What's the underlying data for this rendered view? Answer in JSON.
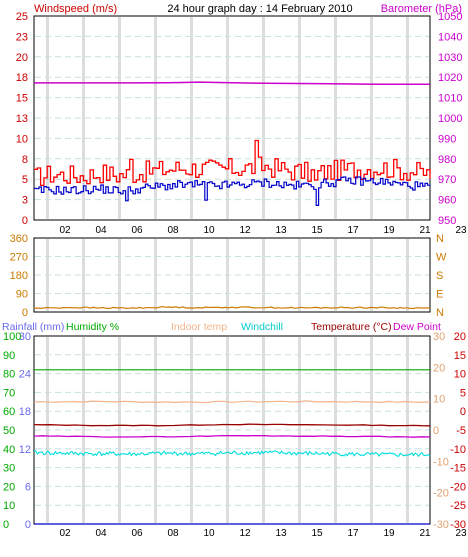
{
  "header": {
    "left_title": "Windspeed (m/s)",
    "center_title": "24 hour graph day : 14 February 2010",
    "right_title": "Barometer (hPa)"
  },
  "colors": {
    "wind_gust": "#ff0000",
    "wind_avg": "#0000cc",
    "barometer": "#cc00cc",
    "direction": "#cc7a00",
    "rainfall_axis": "#6a6aee",
    "humidity": "#00aa00",
    "indoor_temp": "#f2b48a",
    "windchill": "#00dddd",
    "temperature": "#990000",
    "dew_point": "#cc00cc",
    "grid_vertical": "#dddddd",
    "grid_dashed": "#c8dfdf"
  },
  "x_ticks": [
    "02",
    "04",
    "06",
    "08",
    "10",
    "12",
    "13",
    "15",
    "17",
    "19",
    "21",
    "23"
  ],
  "chart_data": [
    {
      "type": "line",
      "name": "wind-barometer",
      "y_left_ticks": [
        "0",
        "3",
        "5",
        "8",
        "10",
        "13",
        "15",
        "18",
        "20",
        "23",
        "25"
      ],
      "y_left_range": [
        0,
        25
      ],
      "y_right_ticks": [
        "950",
        "960",
        "970",
        "980",
        "990",
        "1000",
        "1010",
        "1020",
        "1030",
        "1040",
        "1050"
      ],
      "y_right_range": [
        950,
        1050
      ],
      "series": [
        {
          "name": "Barometer",
          "axis": "right",
          "x": [
            0,
            6,
            8,
            9,
            10,
            12,
            14,
            16,
            18,
            20,
            22,
            24
          ],
          "values": [
            1017.2,
            1017.2,
            1017.3,
            1017.4,
            1017.6,
            1017.3,
            1017.0,
            1016.9,
            1016.8,
            1016.6,
            1016.5,
            1016.5
          ]
        },
        {
          "name": "Wind gust",
          "axis": "left",
          "x": [
            0,
            1,
            2,
            3,
            4,
            5,
            6,
            7,
            8,
            9,
            10,
            11,
            12,
            13,
            14,
            15,
            16,
            17,
            18,
            19,
            20,
            21,
            22,
            23,
            24
          ],
          "values": [
            5.2,
            5.6,
            5.5,
            5.4,
            5.8,
            5.5,
            5.7,
            6.0,
            6.2,
            6.4,
            6.3,
            6.2,
            6.3,
            6.4,
            6.6,
            6.2,
            5.9,
            5.7,
            6.0,
            6.2,
            6.3,
            6.4,
            6.2,
            5.9,
            5.6
          ]
        },
        {
          "name": "Wind average",
          "axis": "left",
          "x": [
            0,
            1,
            2,
            3,
            4,
            5,
            6,
            7,
            8,
            9,
            10,
            11,
            12,
            13,
            14,
            15,
            16,
            17,
            18,
            19,
            20,
            21,
            22,
            23,
            24
          ],
          "values": [
            3.5,
            3.7,
            3.6,
            3.7,
            3.8,
            3.6,
            3.7,
            4.0,
            4.2,
            4.3,
            4.3,
            4.2,
            4.3,
            4.4,
            4.6,
            4.3,
            4.2,
            4.3,
            4.6,
            4.8,
            4.8,
            4.7,
            4.4,
            4.2,
            4.0
          ]
        }
      ]
    },
    {
      "type": "line",
      "name": "wind-direction",
      "y_left_ticks": [
        "0",
        "90",
        "180",
        "270",
        "360"
      ],
      "y_left_range": [
        0,
        360
      ],
      "y_right_ticks": [
        "N",
        "E",
        "S",
        "W",
        "N"
      ],
      "series": [
        {
          "name": "Direction",
          "axis": "left",
          "x": [
            0,
            2,
            4,
            6,
            8,
            10,
            12,
            14,
            16,
            18,
            20,
            22,
            24
          ],
          "values": [
            18,
            22,
            20,
            19,
            24,
            21,
            23,
            22,
            20,
            21,
            22,
            20,
            19
          ]
        }
      ]
    },
    {
      "type": "line",
      "name": "temperature-humidity",
      "legend": [
        "Rainfall (mm)",
        "Humidity %",
        "Indoor temp",
        "Windchill",
        "Temperature (°C)",
        "Dew Point"
      ],
      "y_left_ticks": [
        "0",
        "6",
        "12",
        "18",
        "24",
        "30"
      ],
      "y_left_range": [
        0,
        30
      ],
      "y_left2_ticks": [
        "0",
        "10",
        "20",
        "30",
        "40",
        "50",
        "60",
        "70",
        "80",
        "90",
        "100"
      ],
      "y_left2_range": [
        0,
        100
      ],
      "y_right_ticks": [
        "-30",
        "-20",
        "-10",
        "0",
        "10",
        "20",
        "30"
      ],
      "y_right_range": [
        -30,
        30
      ],
      "y_right2_ticks": [
        "-30",
        "-25",
        "-20",
        "-15",
        "-10",
        "-5",
        "0",
        "5",
        "10",
        "15",
        "20"
      ],
      "y_right2_range": [
        -30,
        20
      ],
      "series": [
        {
          "name": "Rainfall (mm)",
          "axis": "left",
          "x": [
            0,
            24
          ],
          "values": [
            0,
            0
          ]
        },
        {
          "name": "Humidity %",
          "axis": "left2",
          "x": [
            0,
            24
          ],
          "values": [
            82,
            82
          ]
        },
        {
          "name": "Indoor temp",
          "axis": "right",
          "x": [
            0,
            4,
            8,
            12,
            16,
            20,
            24
          ],
          "values": [
            9.0,
            9.1,
            8.9,
            9.0,
            9.1,
            9.0,
            8.9
          ]
        },
        {
          "name": "Temperature (°C)",
          "axis": "right2",
          "x": [
            0,
            4,
            8,
            12,
            16,
            20,
            24
          ],
          "values": [
            -3.6,
            -3.8,
            -3.8,
            -3.5,
            -3.6,
            -3.7,
            -3.9
          ]
        },
        {
          "name": "Dew Point",
          "axis": "right2",
          "x": [
            0,
            4,
            8,
            12,
            16,
            20,
            24
          ],
          "values": [
            -6.6,
            -6.8,
            -6.8,
            -6.5,
            -6.6,
            -6.7,
            -6.9
          ]
        },
        {
          "name": "Windchill",
          "axis": "right2",
          "x": [
            0,
            2,
            4,
            6,
            8,
            10,
            12,
            14,
            16,
            18,
            20,
            22,
            24
          ],
          "values": [
            -11.0,
            -11.2,
            -11.3,
            -11.4,
            -11.2,
            -11.3,
            -11.1,
            -11.0,
            -11.2,
            -11.3,
            -11.5,
            -11.6,
            -11.5
          ]
        }
      ]
    }
  ]
}
